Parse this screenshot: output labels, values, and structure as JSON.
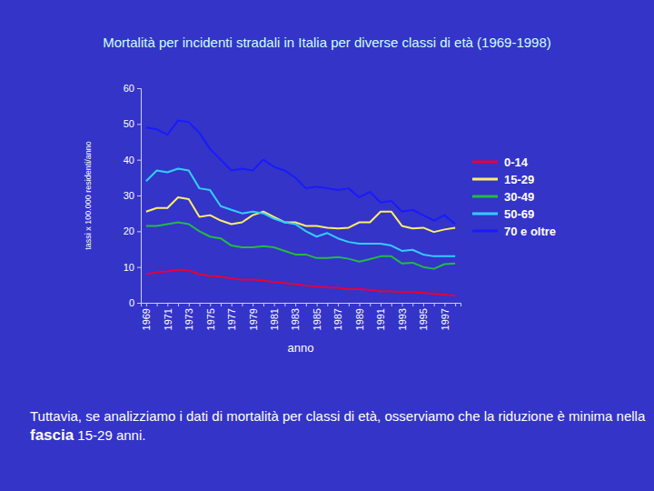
{
  "chart_data": {
    "type": "line",
    "title": "Mortalità per incidenti stradali in Italia per diverse classi di età (1969-1998)",
    "y_label": "tassi x 100.000 residenti/anno",
    "x_label": "anno",
    "annotation": [
      "Tuttavia, se analizziamo i dati di mortalità per classi di età, osserviamo che la riduzione è minima nella ",
      "fascia",
      " 15-29 anni."
    ],
    "categories": [
      "1969",
      null,
      "1971",
      null,
      "1973",
      null,
      "1975",
      null,
      "1977",
      null,
      "1979",
      null,
      "1981",
      null,
      "1983",
      null,
      "1985",
      null,
      "1987",
      null,
      "1989",
      null,
      "1991",
      null,
      "1993",
      null,
      "1995",
      null,
      "1997",
      null
    ],
    "series": [
      {
        "name": "0-14",
        "color": "#e8003a",
        "values": [
          8,
          8.5,
          8.8,
          9.3,
          9,
          8,
          7.5,
          7.3,
          6.8,
          6.5,
          6.5,
          6.2,
          5.8,
          5.5,
          5.2,
          4.8,
          4.5,
          4.3,
          4.2,
          3.8,
          3.8,
          3.6,
          3.2,
          3.2,
          3,
          3,
          2.8,
          2.5,
          2.3,
          2
        ]
      },
      {
        "name": "15-29",
        "color": "#ffee66",
        "values": [
          25.5,
          26.5,
          26.5,
          29.5,
          29,
          24,
          24.5,
          23,
          22,
          22.5,
          24.5,
          25.5,
          24,
          22.5,
          22.5,
          21.5,
          21.5,
          21,
          20.8,
          21,
          22.5,
          22.5,
          25.5,
          25.5,
          21.5,
          20.8,
          21,
          19.8,
          20.5,
          21
        ]
      },
      {
        "name": "30-49",
        "color": "#22bb44",
        "values": [
          21.5,
          21.5,
          22,
          22.5,
          22,
          20,
          18.5,
          18,
          16,
          15.5,
          15.5,
          15.8,
          15.5,
          14.5,
          13.5,
          13.5,
          12.5,
          12.5,
          12.8,
          12.3,
          11.5,
          12.2,
          13,
          13,
          11,
          11.2,
          10,
          9.5,
          10.8,
          11
        ]
      },
      {
        "name": "50-69",
        "color": "#33ccff",
        "values": [
          34,
          37,
          36.5,
          37.5,
          37,
          32,
          31.5,
          27,
          26,
          25,
          25.5,
          25,
          23.5,
          22.5,
          22,
          20,
          18.5,
          19.5,
          18,
          17,
          16.5,
          16.5,
          16.5,
          16,
          14.5,
          14.8,
          13.5,
          13,
          13,
          13
        ]
      },
      {
        "name": "70 e oltre",
        "color": "#1a1aff",
        "values": [
          49,
          48.5,
          47,
          51,
          50.5,
          47.5,
          43,
          40,
          37,
          37.5,
          37,
          40,
          38,
          37,
          35,
          32,
          32.5,
          32,
          31.5,
          32,
          29.5,
          31,
          28,
          28.5,
          25.5,
          26,
          24.5,
          23,
          24.5,
          22
        ]
      }
    ],
    "ylim": [
      0,
      60
    ],
    "yticks": [
      0,
      10,
      20,
      30,
      40,
      50,
      60
    ],
    "grid": false,
    "legend": "right"
  }
}
